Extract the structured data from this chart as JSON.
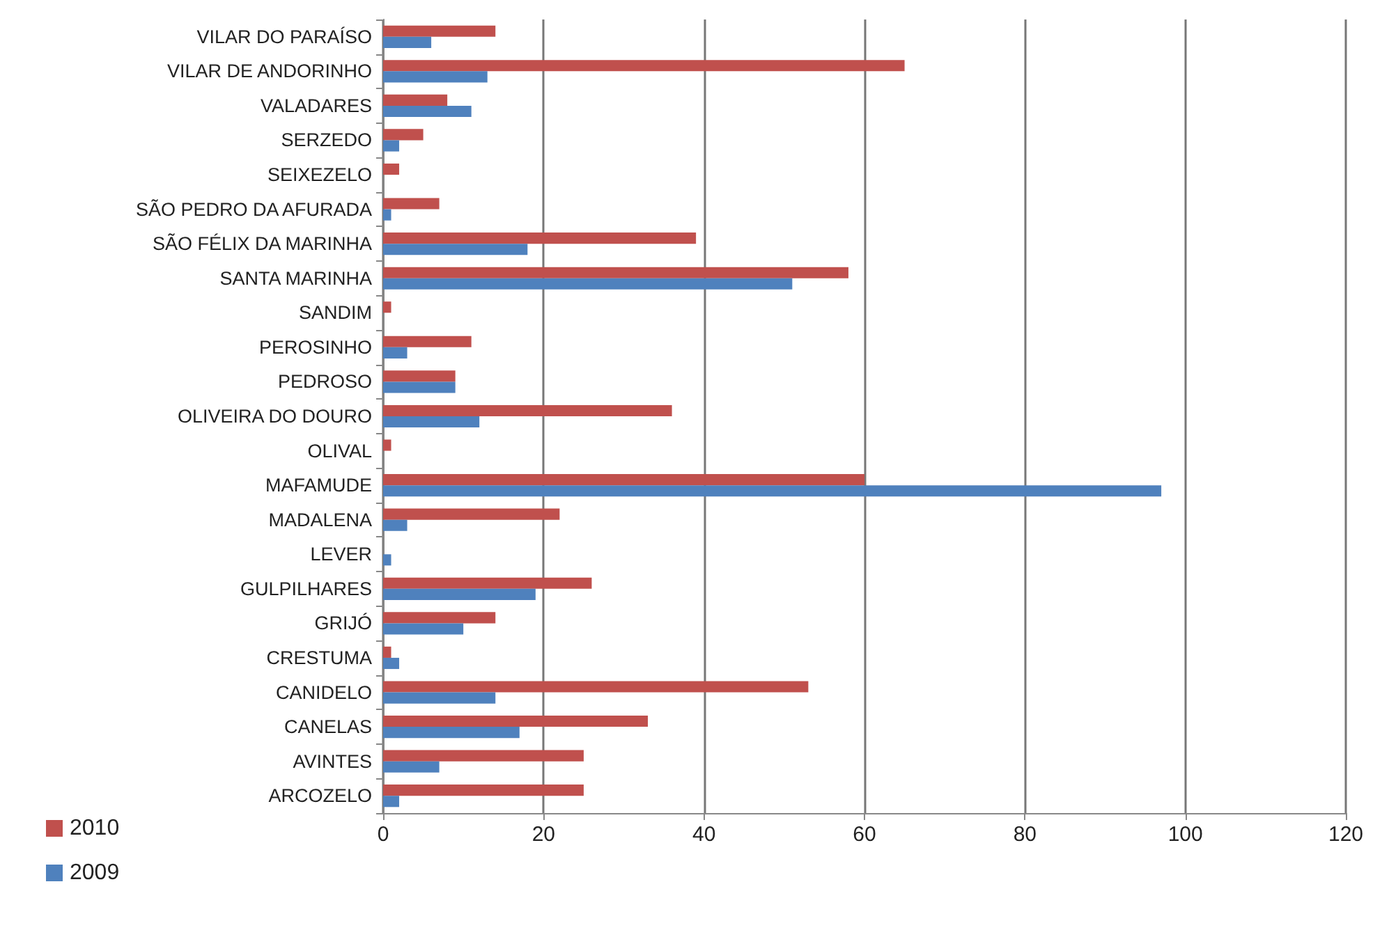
{
  "chart_data": {
    "type": "bar",
    "orientation": "horizontal",
    "categories": [
      "VILAR DO PARAÍSO",
      "VILAR DE ANDORINHO",
      "VALADARES",
      "SERZEDO",
      "SEIXEZELO",
      "SÃO PEDRO DA AFURADA",
      "SÃO FÉLIX DA MARINHA",
      "SANTA MARINHA",
      "SANDIM",
      "PEROSINHO",
      "PEDROSO",
      "OLIVEIRA DO DOURO",
      "OLIVAL",
      "MAFAMUDE",
      "MADALENA",
      "LEVER",
      "GULPILHARES",
      "GRIJÓ",
      "CRESTUMA",
      "CANIDELO",
      "CANELAS",
      "AVINTES",
      "ARCOZELO"
    ],
    "series": [
      {
        "name": "2010",
        "color": "#c0504d",
        "values": [
          14,
          65,
          8,
          5,
          2,
          7,
          39,
          58,
          1,
          11,
          9,
          36,
          1,
          60,
          22,
          null,
          26,
          14,
          1,
          53,
          33,
          25,
          25
        ]
      },
      {
        "name": "2009",
        "color": "#4f81bd",
        "values": [
          6,
          13,
          11,
          2,
          null,
          1,
          18,
          51,
          null,
          3,
          9,
          12,
          null,
          97,
          3,
          1,
          19,
          10,
          2,
          14,
          17,
          7,
          2
        ]
      }
    ],
    "xlim": [
      0,
      120
    ],
    "xticks": [
      0,
      20,
      40,
      60,
      80,
      100,
      120
    ],
    "grid": "x",
    "legend": "bottom left"
  }
}
